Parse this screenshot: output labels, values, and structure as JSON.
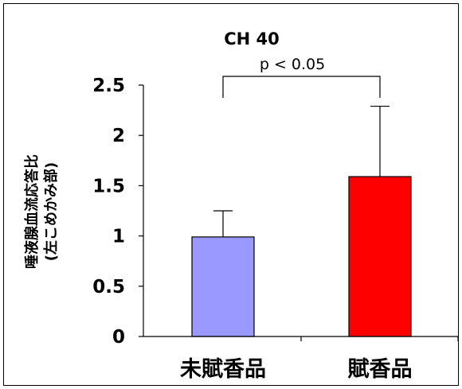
{
  "chart_data": {
    "type": "bar",
    "title": "CH 40",
    "ylabel": "唾液腺血流応答比",
    "ylabel_sub": "(左こめかみ部)",
    "xlabel": "",
    "ylim": [
      0,
      2.5
    ],
    "yticks": [
      "0",
      "0.5",
      "1",
      "1.5",
      "2",
      "2.5"
    ],
    "ytick_values": [
      0,
      0.5,
      1,
      1.5,
      2,
      2.5
    ],
    "categories": [
      "未賦香品",
      "賦香品"
    ],
    "values": [
      0.99,
      1.59
    ],
    "error_upper": [
      1.25,
      2.29
    ],
    "colors": [
      "#9999ff",
      "#ff0000"
    ],
    "grid": false,
    "annotation": {
      "text": "p < 0.05",
      "between": [
        0,
        1
      ]
    }
  }
}
